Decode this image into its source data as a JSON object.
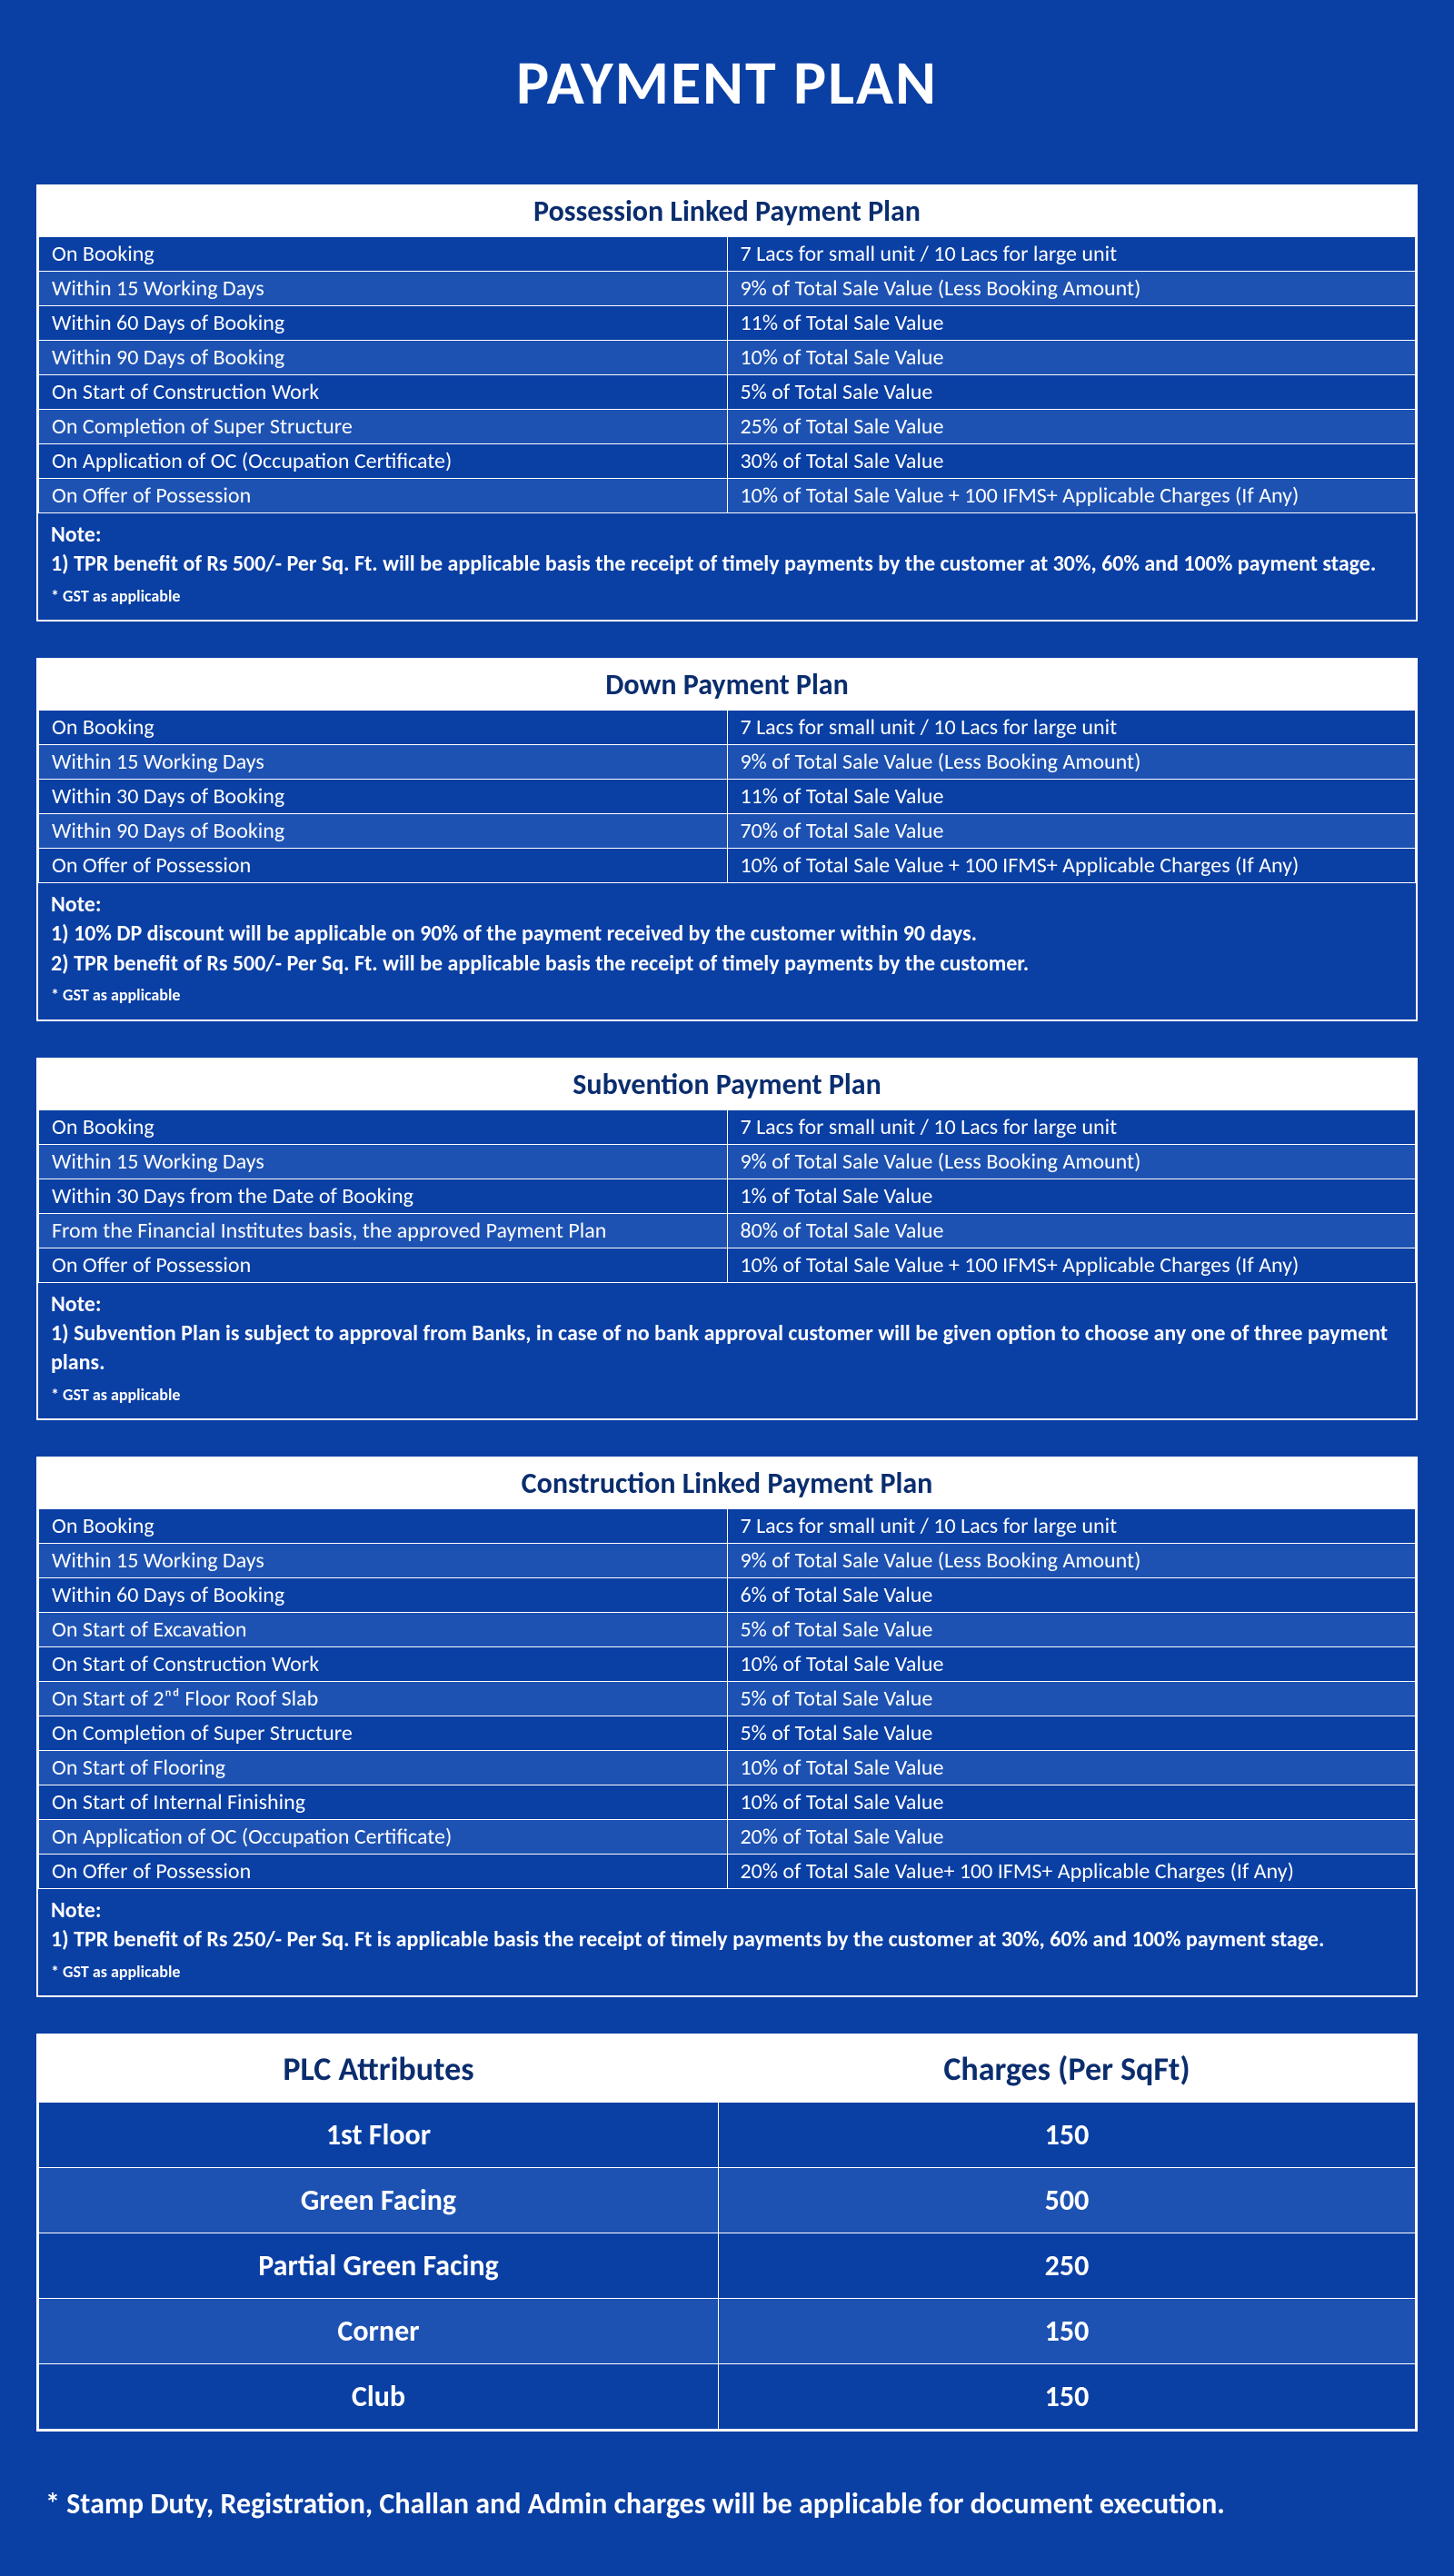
{
  "page": {
    "title": "PAYMENT PLAN",
    "bg_color": "#0a3fa4",
    "alt_row_color": "#1d52b3",
    "header_bg": "#ffffff",
    "header_text_color": "#0a2d6e",
    "text_color": "#ffffff"
  },
  "plans": [
    {
      "title": "Possession Linked Payment Plan",
      "rows": [
        {
          "left": "On Booking",
          "right": "7 Lacs for small unit / 10 Lacs for large unit",
          "alt": false
        },
        {
          "left": "Within 15 Working Days",
          "right": "9% of Total Sale Value (Less Booking Amount)",
          "alt": true
        },
        {
          "left": "Within 60 Days of Booking",
          "right": "11% of Total Sale Value",
          "alt": false
        },
        {
          "left": "Within 90 Days of Booking",
          "right": "10% of Total Sale Value",
          "alt": true
        },
        {
          "left": "On Start of Construction Work",
          "right": "5% of Total Sale Value",
          "alt": false
        },
        {
          "left": "On Completion of Super Structure",
          "right": "25% of Total Sale Value",
          "alt": true
        },
        {
          "left": "On Application of OC (Occupation Certificate)",
          "right": "30% of Total Sale Value",
          "alt": false
        },
        {
          "left": "On Offer of Possession",
          "right": "10% of Total Sale Value + 100 IFMS+ Applicable Charges (If Any)",
          "alt": true
        }
      ],
      "note_label": "Note:",
      "notes": [
        "1) TPR benefit of Rs 500/- Per Sq. Ft. will be applicable basis the receipt of timely payments by the customer at 30%, 60% and 100% payment stage."
      ],
      "gst": "* GST as applicable"
    },
    {
      "title": "Down Payment Plan",
      "rows": [
        {
          "left": "On Booking",
          "right": "7 Lacs for small unit / 10 Lacs for large unit",
          "alt": false
        },
        {
          "left": "Within 15 Working Days",
          "right": "9% of Total Sale Value (Less Booking Amount)",
          "alt": true
        },
        {
          "left": "Within 30 Days of Booking",
          "right": "11% of Total Sale Value",
          "alt": false
        },
        {
          "left": "Within 90 Days of Booking",
          "right": "70% of Total Sale Value",
          "alt": true
        },
        {
          "left": "On Offer of Possession",
          "right": "10% of Total Sale Value + 100 IFMS+ Applicable Charges (If Any)",
          "alt": false
        }
      ],
      "note_label": "Note:",
      "notes": [
        "1) 10% DP discount will be applicable on 90% of the payment received by the customer within 90 days.",
        "2) TPR benefit of Rs 500/- Per Sq. Ft. will be applicable basis the receipt of timely payments by the customer."
      ],
      "gst": "* GST as applicable"
    },
    {
      "title": "Subvention Payment Plan",
      "rows": [
        {
          "left": "On Booking",
          "right": "7 Lacs for small unit / 10 Lacs for large unit",
          "alt": false
        },
        {
          "left": "Within 15 Working Days",
          "right": "9% of Total Sale Value (Less Booking Amount)",
          "alt": true
        },
        {
          "left": "Within 30 Days from the Date of Booking",
          "right": "1% of Total Sale Value",
          "alt": false
        },
        {
          "left": "From the Financial Institutes basis, the approved Payment Plan",
          "right": "80% of Total Sale Value",
          "alt": true
        },
        {
          "left": "On Offer of Possession",
          "right": "10% of Total Sale Value + 100 IFMS+ Applicable Charges (If Any)",
          "alt": false
        }
      ],
      "note_label": "Note:",
      "notes": [
        "1) Subvention Plan is subject to approval from Banks, in case of no bank approval customer will be given option to choose any one of three payment plans."
      ],
      "gst": "* GST as applicable"
    },
    {
      "title": "Construction Linked Payment Plan",
      "rows": [
        {
          "left": "On Booking",
          "right": "7 Lacs for small unit / 10 Lacs for large unit",
          "alt": false
        },
        {
          "left": "Within 15 Working Days",
          "right": "9% of Total Sale Value (Less Booking Amount)",
          "alt": true
        },
        {
          "left": "Within 60 Days of Booking",
          "right": "6% of Total Sale Value",
          "alt": false
        },
        {
          "left": "On Start of Excavation",
          "right": "5% of Total Sale Value",
          "alt": true
        },
        {
          "left": "On Start of Construction Work",
          "right": "10% of Total Sale Value",
          "alt": false
        },
        {
          "left": "On Start of 2ⁿᵈ Floor Roof Slab",
          "right": "5% of Total Sale Value",
          "alt": true
        },
        {
          "left": "On Completion of Super Structure",
          "right": "5% of Total Sale Value",
          "alt": false
        },
        {
          "left": "On Start of Flooring",
          "right": "10% of Total Sale Value",
          "alt": true
        },
        {
          "left": "On Start of Internal Finishing",
          "right": "10% of Total Sale Value",
          "alt": false
        },
        {
          "left": "On Application of OC (Occupation Certificate)",
          "right": "20% of Total Sale Value",
          "alt": true
        },
        {
          "left": "On Offer of Possession",
          "right": "20% of Total Sale Value+ 100 IFMS+ Applicable Charges (If Any)",
          "alt": false
        }
      ],
      "note_label": "Note:",
      "notes": [
        "1) TPR benefit of Rs 250/- Per Sq. Ft is applicable basis the receipt of timely payments by the customer at 30%, 60% and 100% payment stage."
      ],
      "gst": "* GST as applicable"
    }
  ],
  "plc": {
    "headers": [
      "PLC Attributes",
      "Charges (Per SqFt)"
    ],
    "rows": [
      {
        "attr": "1st Floor",
        "charge": "150",
        "cls": "dark"
      },
      {
        "attr": "Green Facing",
        "charge": "500",
        "cls": "light"
      },
      {
        "attr": "Partial Green Facing",
        "charge": "250",
        "cls": "dark"
      },
      {
        "attr": "Corner",
        "charge": "150",
        "cls": "light"
      },
      {
        "attr": "Club",
        "charge": "150",
        "cls": "dark"
      }
    ]
  },
  "footer": "*  Stamp Duty, Registration, Challan and Admin charges will be applicable for document execution."
}
